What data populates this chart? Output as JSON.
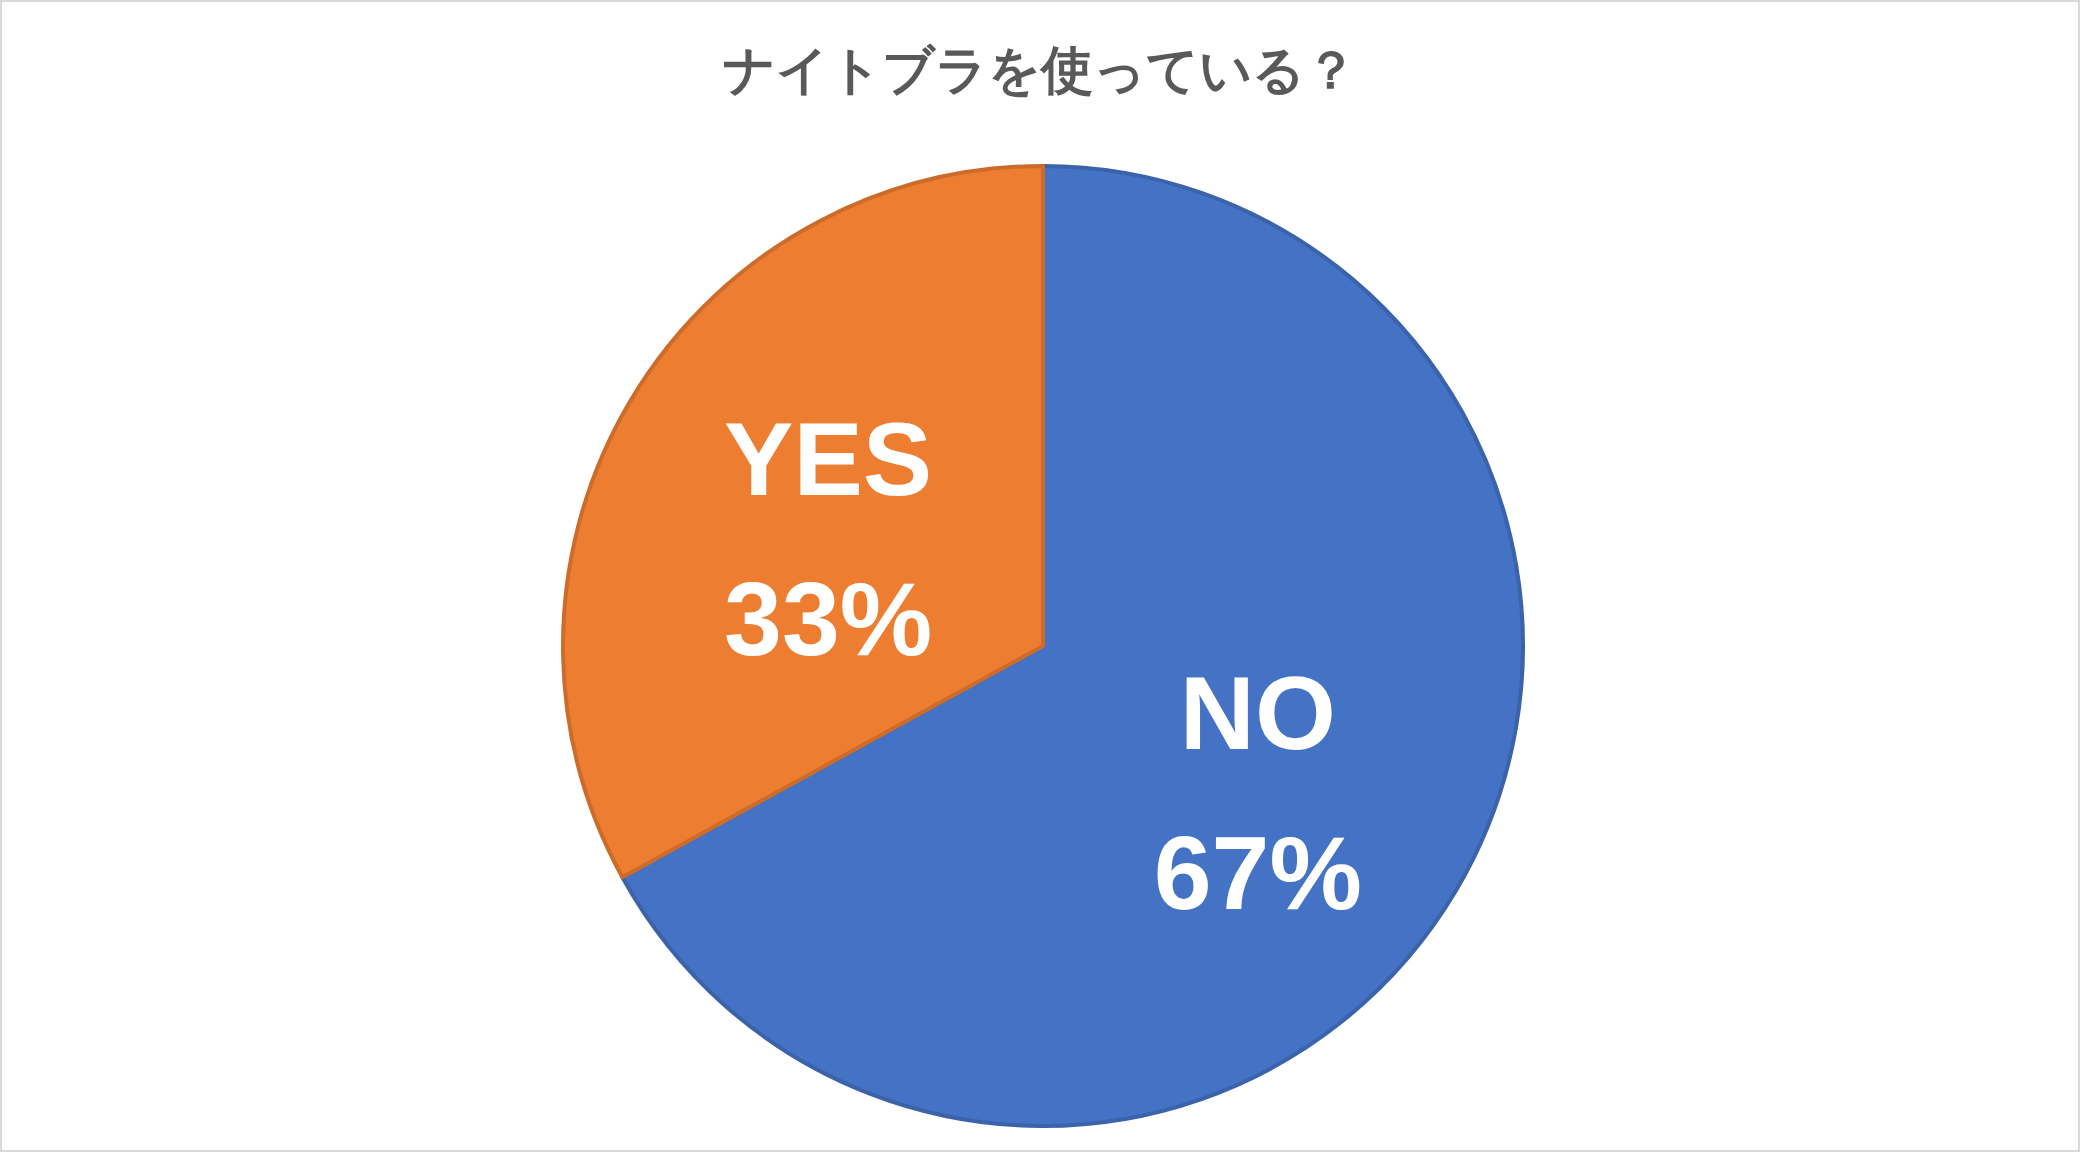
{
  "chart_data": {
    "type": "pie",
    "title": "ナイトブラを使っている？",
    "categories": [
      "NO",
      "YES"
    ],
    "values": [
      67,
      33
    ],
    "value_labels": [
      "67%",
      "33%"
    ],
    "colors": [
      "#4472c4",
      "#ed7d31"
    ],
    "legend": false
  }
}
